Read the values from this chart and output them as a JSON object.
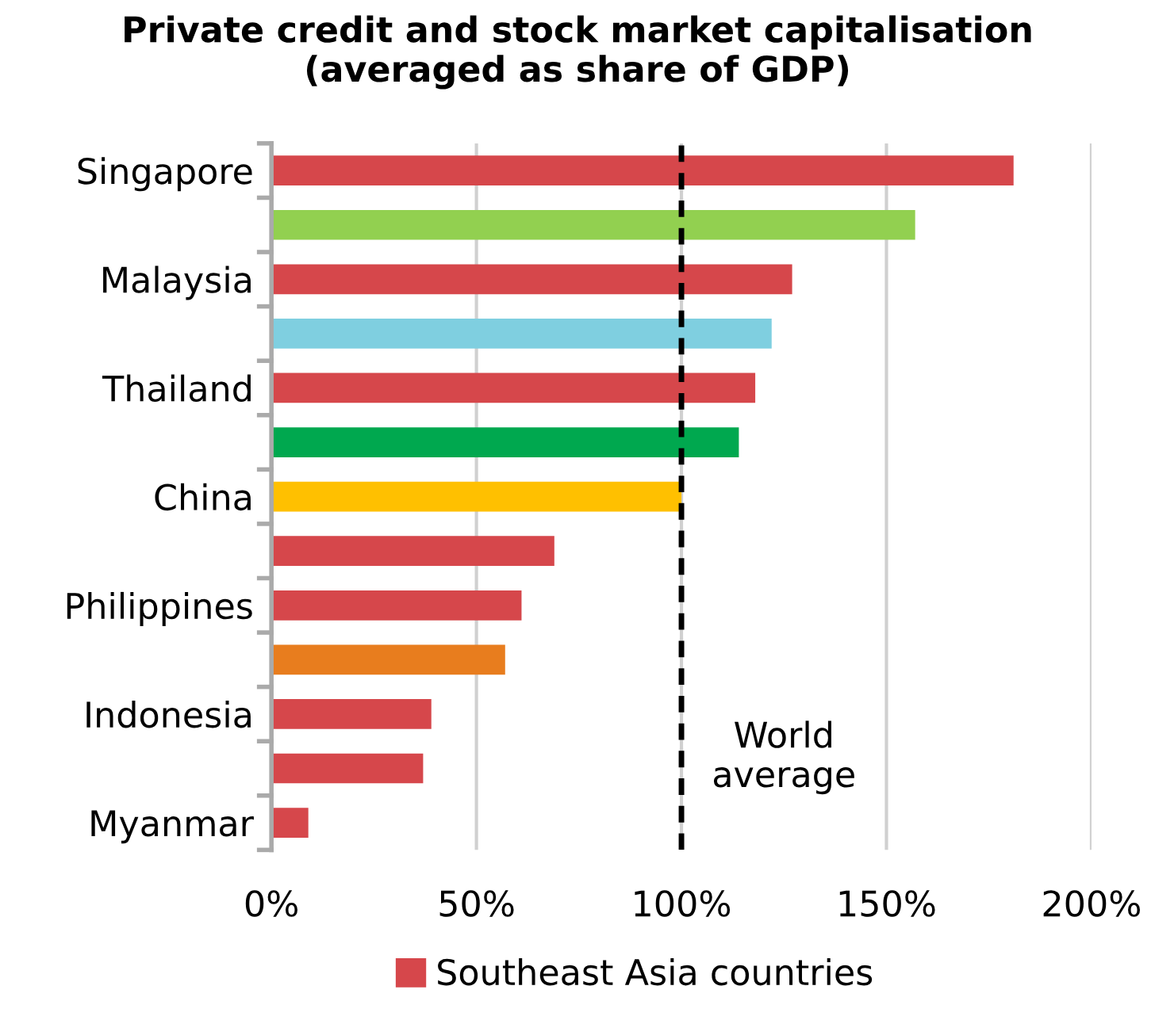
{
  "chart_data": {
    "type": "bar",
    "orientation": "horizontal",
    "title": "Private credit and stock market capitalisation\n(averaged as share of GDP)",
    "categories": [
      "Singapore",
      null,
      "Malaysia",
      null,
      "Thailand",
      null,
      "China",
      null,
      "Philippines",
      null,
      "Indonesia",
      null,
      "Myanmar"
    ],
    "series": [
      {
        "name": "Southeast Asia countries",
        "color": "#d6474b",
        "colors": [
          "#d6474b",
          "#92d050",
          "#d6474b",
          "#7fcfe0",
          "#d6474b",
          "#00a84f",
          "#ffc000",
          "#d6474b",
          "#d6474b",
          "#e87d1e",
          "#d6474b",
          "#d6474b",
          "#d6474b"
        ],
        "values": [
          181,
          157,
          127,
          122,
          118,
          114,
          100,
          69,
          61,
          57,
          39,
          37,
          9
        ]
      }
    ],
    "xlim": [
      0,
      200
    ],
    "xticks": [
      {
        "value": 0,
        "label": "0%"
      },
      {
        "value": 50,
        "label": "50%"
      },
      {
        "value": 100,
        "label": "100%"
      },
      {
        "value": 150,
        "label": "150%"
      },
      {
        "value": 200,
        "label": "200%"
      }
    ],
    "grid": "x",
    "legend": "bottom",
    "ref_lines": [
      {
        "axis": "x",
        "value": 100,
        "label": "World\naverage",
        "color": "#000000",
        "line_style": "dashed"
      }
    ]
  }
}
